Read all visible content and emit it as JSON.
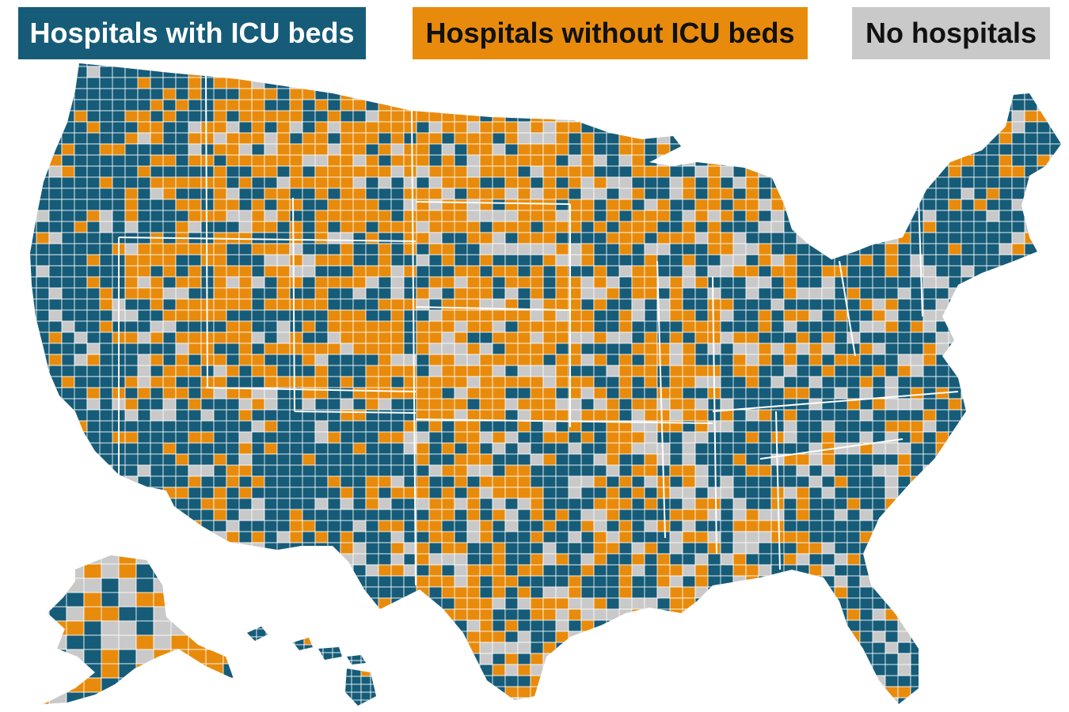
{
  "legend": [
    {
      "key": "icu",
      "label": "Hospitals with ICU beds",
      "color": "#165c78"
    },
    {
      "key": "noicu",
      "label": "Hospitals without ICU beds",
      "color": "#e88b0c"
    },
    {
      "key": "none",
      "label": "No hospitals",
      "color": "#c9c9c9"
    }
  ],
  "map": {
    "type": "choropleth",
    "unit": "county",
    "region": "United States",
    "insets": [
      "Alaska",
      "Hawaii"
    ],
    "border_color": "#ffffff",
    "regional_pattern": [
      {
        "region": "West Coast",
        "dominant": "icu"
      },
      {
        "region": "Northern Rockies and Northern Plains",
        "dominant": "noicu"
      },
      {
        "region": "Great Basin",
        "dominant": "noicu"
      },
      {
        "region": "Southwest",
        "dominant": "icu"
      },
      {
        "region": "Central Plains",
        "dominant": "noicu"
      },
      {
        "region": "Texas",
        "dominant": "mixed"
      },
      {
        "region": "Midwest",
        "dominant": "mixed"
      },
      {
        "region": "Southeast",
        "dominant": "icu"
      },
      {
        "region": "Northeast",
        "dominant": "icu"
      },
      {
        "region": "Florida",
        "dominant": "icu"
      },
      {
        "region": "Alaska",
        "dominant": "mixed"
      },
      {
        "region": "Hawaii",
        "dominant": "icu"
      }
    ]
  }
}
